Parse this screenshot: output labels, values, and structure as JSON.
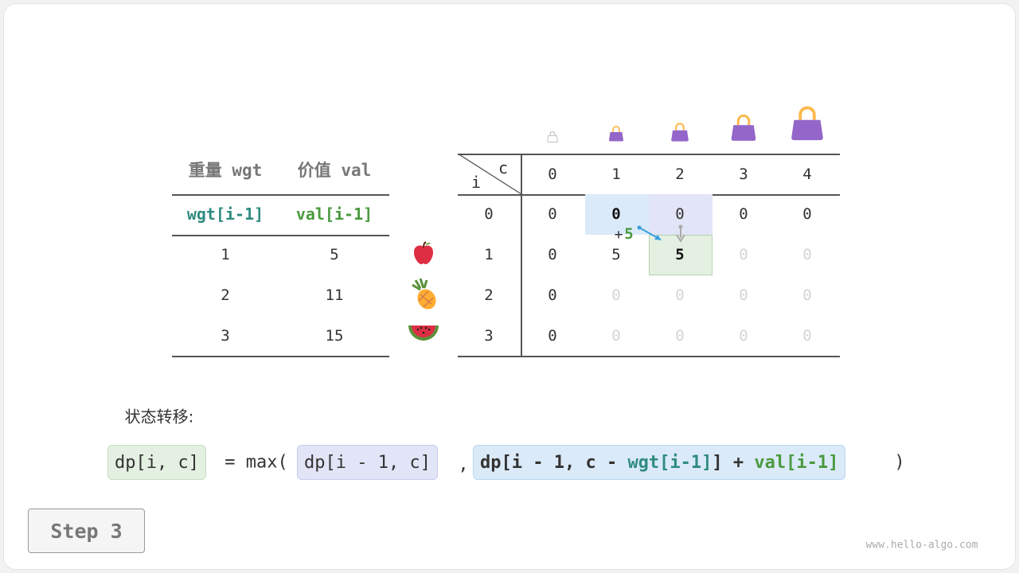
{
  "items_table": {
    "headers": [
      "重量 wgt",
      "价值 val"
    ],
    "sub_headers": [
      "wgt[i-1]",
      "val[i-1]"
    ],
    "rows": [
      [
        "1",
        "5"
      ],
      [
        "2",
        "11"
      ],
      [
        "3",
        "15"
      ]
    ],
    "item_icons": [
      "apple-icon",
      "pineapple-icon",
      "watermelon-icon"
    ]
  },
  "dp_table": {
    "corner_col": "c",
    "corner_row": "i",
    "capacities": [
      "0",
      "1",
      "2",
      "3",
      "4"
    ],
    "row_labels": [
      "0",
      "1",
      "2",
      "3"
    ],
    "cells": [
      [
        "0",
        "0",
        "0",
        "0",
        "0"
      ],
      [
        "0",
        "5",
        "5",
        "0",
        "0"
      ],
      [
        "0",
        "0",
        "0",
        "0",
        "0"
      ],
      [
        "0",
        "0",
        "0",
        "0",
        "0"
      ]
    ],
    "filled": [
      [
        true,
        true,
        true,
        true,
        true
      ],
      [
        true,
        true,
        true,
        false,
        false
      ],
      [
        true,
        false,
        false,
        false,
        false
      ],
      [
        true,
        false,
        false,
        false,
        false
      ]
    ],
    "highlight": {
      "from_value_cell": [
        0,
        1
      ],
      "from_skip_cell": [
        0,
        2
      ],
      "current_cell": [
        1,
        2
      ]
    },
    "annotation_plus": "+",
    "annotation_value": "5",
    "bag_icons": [
      "bag-icon",
      "bag-icon",
      "bag-icon",
      "bag-icon",
      "bag-icon"
    ]
  },
  "transition_label": "状态转移:",
  "formula": {
    "lhs": "dp[i, c]",
    "eq": "= max(",
    "opt1": "dp[i - 1, c]",
    "comma": ",",
    "opt2_a": "dp[i - 1, c - ",
    "opt2_wgt": "wgt[i-1]",
    "opt2_b": "] + ",
    "opt2_val": "val[i-1]",
    "close": ")"
  },
  "step_label": "Step 3",
  "watermark": "www.hello-algo.com",
  "colors": {
    "teal": "#2f8c80",
    "green": "#4a9a3f",
    "blue_cell": "#dbeaf8",
    "purple_cell": "#e2e4f7",
    "green_cell": "#e4f0e2",
    "bag": "#9466c9"
  }
}
